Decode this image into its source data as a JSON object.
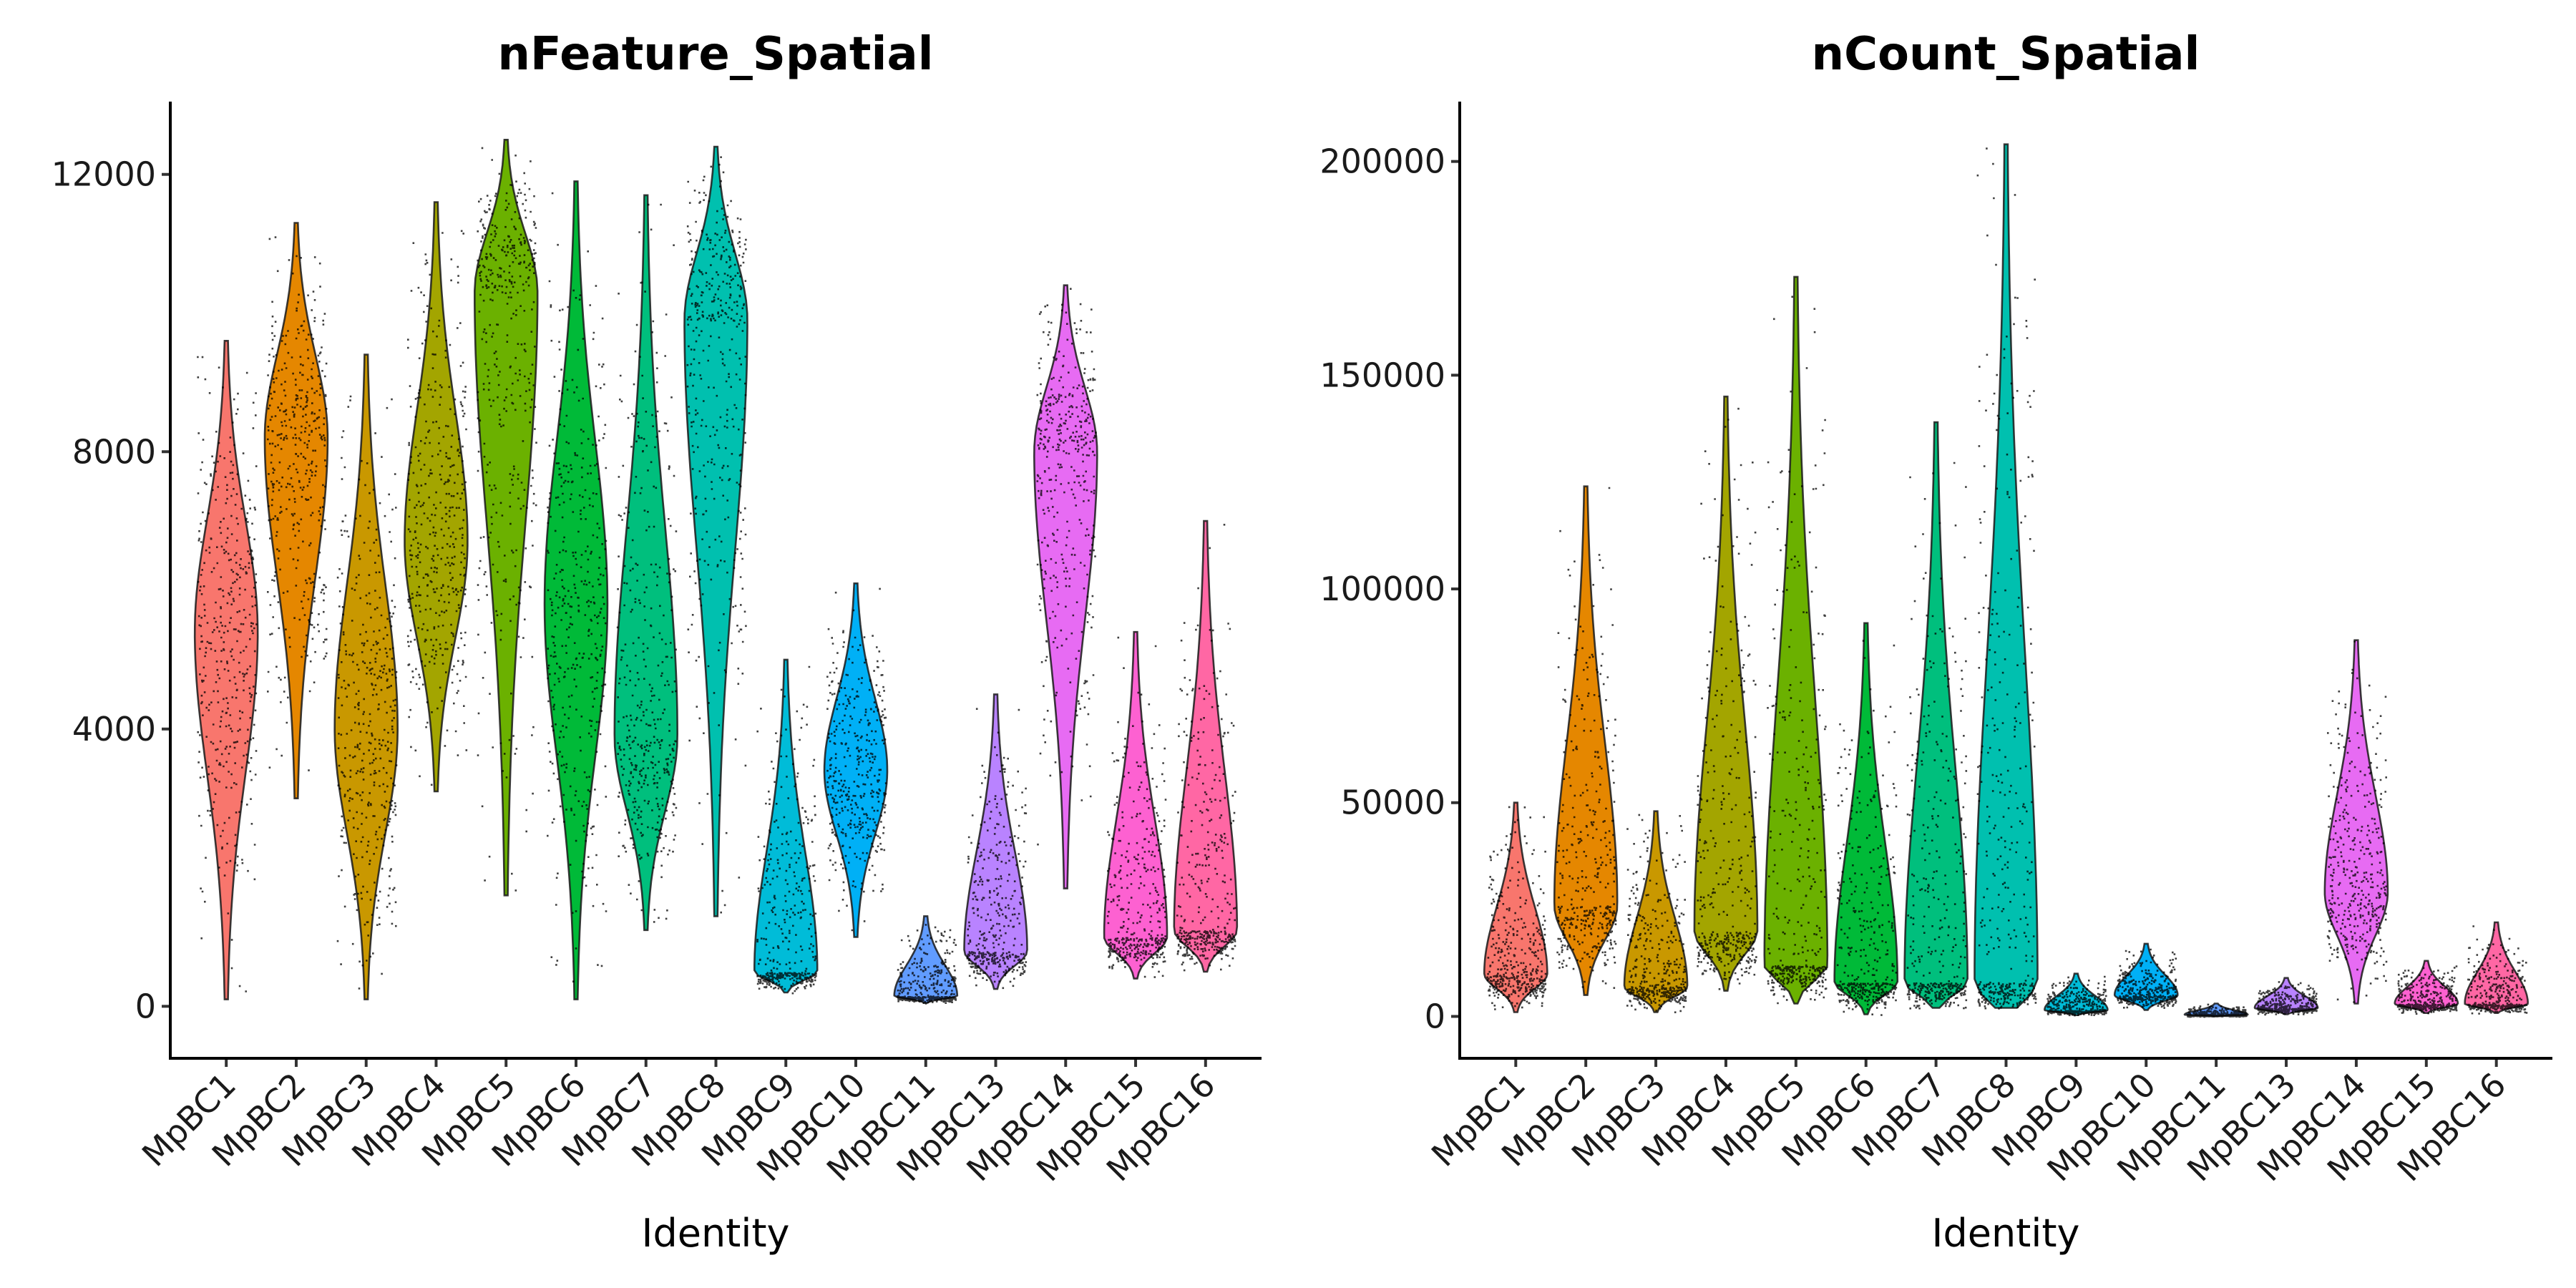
{
  "chart_data": [
    {
      "type": "violin",
      "title": "nFeature_Spatial",
      "xlabel": "Identity",
      "ylabel": "",
      "ylim": [
        -750,
        13050
      ],
      "yticks": [
        0,
        4000,
        8000,
        12000
      ],
      "categories": [
        "MpBC1",
        "MpBC2",
        "MpBC3",
        "MpBC4",
        "MpBC5",
        "MpBC6",
        "MpBC7",
        "MpBC8",
        "MpBC9",
        "MpBC10",
        "MpBC11",
        "MpBC13",
        "MpBC14",
        "MpBC15",
        "MpBC16"
      ],
      "colors": [
        "#F8766D",
        "#E58700",
        "#C99800",
        "#A3A500",
        "#6BB100",
        "#00BA38",
        "#00BF7D",
        "#00C0AF",
        "#00BCD8",
        "#00B0F6",
        "#619CFF",
        "#B983FF",
        "#E76BF3",
        "#FD61D1",
        "#FF67A4"
      ],
      "series": [
        {
          "min": 100,
          "max": 9600,
          "median": 5300,
          "peak": 5400
        },
        {
          "min": 3000,
          "max": 11300,
          "median": 8000,
          "peak": 8200
        },
        {
          "min": 100,
          "max": 9400,
          "median": 4200,
          "peak": 4000
        },
        {
          "min": 3100,
          "max": 11600,
          "median": 6700,
          "peak": 6700
        },
        {
          "min": 1600,
          "max": 12500,
          "median": 9000,
          "peak": 10300
        },
        {
          "min": 100,
          "max": 11900,
          "median": 5600,
          "peak": 5800
        },
        {
          "min": 1100,
          "max": 11700,
          "median": 3800,
          "peak": 3900
        },
        {
          "min": 1300,
          "max": 12400,
          "median": 9200,
          "peak": 9900
        },
        {
          "min": 200,
          "max": 5000,
          "median": 700,
          "peak": 500
        },
        {
          "min": 1000,
          "max": 6100,
          "median": 3300,
          "peak": 3400
        },
        {
          "min": 50,
          "max": 1300,
          "median": 250,
          "peak": 150
        },
        {
          "min": 250,
          "max": 4500,
          "median": 1200,
          "peak": 800
        },
        {
          "min": 1700,
          "max": 10400,
          "median": 7700,
          "peak": 8000
        },
        {
          "min": 400,
          "max": 5400,
          "median": 1500,
          "peak": 1000
        },
        {
          "min": 500,
          "max": 7000,
          "median": 1800,
          "peak": 1100
        }
      ]
    },
    {
      "type": "violin",
      "title": "nCount_Spatial",
      "xlabel": "Identity",
      "ylabel": "",
      "ylim": [
        -9800,
        214000
      ],
      "yticks": [
        0,
        50000,
        100000,
        150000,
        200000
      ],
      "categories": [
        "MpBC1",
        "MpBC2",
        "MpBC3",
        "MpBC4",
        "MpBC5",
        "MpBC6",
        "MpBC7",
        "MpBC8",
        "MpBC9",
        "MpBC10",
        "MpBC11",
        "MpBC13",
        "MpBC14",
        "MpBC15",
        "MpBC16"
      ],
      "colors": [
        "#F8766D",
        "#E58700",
        "#C99800",
        "#A3A500",
        "#6BB100",
        "#00BA38",
        "#00BF7D",
        "#00C0AF",
        "#00BCD8",
        "#00B0F6",
        "#619CFF",
        "#B983FF",
        "#E76BF3",
        "#FD61D1",
        "#FF67A4"
      ],
      "series": [
        {
          "min": 1000,
          "max": 50000,
          "median": 10000,
          "peak": 10000
        },
        {
          "min": 5000,
          "max": 124000,
          "median": 28000,
          "peak": 26000
        },
        {
          "min": 1000,
          "max": 48000,
          "median": 8000,
          "peak": 7000
        },
        {
          "min": 6000,
          "max": 145000,
          "median": 21000,
          "peak": 20000
        },
        {
          "min": 3000,
          "max": 173000,
          "median": 16000,
          "peak": 12000
        },
        {
          "min": 500,
          "max": 92000,
          "median": 9000,
          "peak": 8000
        },
        {
          "min": 2000,
          "max": 139000,
          "median": 9000,
          "peak": 8000
        },
        {
          "min": 2000,
          "max": 204000,
          "median": 14000,
          "peak": 8000
        },
        {
          "min": 300,
          "max": 10000,
          "median": 2000,
          "peak": 1500
        },
        {
          "min": 1500,
          "max": 17000,
          "median": 5000,
          "peak": 5000
        },
        {
          "min": 100,
          "max": 3000,
          "median": 500,
          "peak": 400
        },
        {
          "min": 500,
          "max": 9000,
          "median": 2500,
          "peak": 2000
        },
        {
          "min": 3000,
          "max": 88000,
          "median": 29000,
          "peak": 29000
        },
        {
          "min": 800,
          "max": 13000,
          "median": 3500,
          "peak": 3000
        },
        {
          "min": 800,
          "max": 22000,
          "median": 3500,
          "peak": 3000
        }
      ]
    }
  ]
}
